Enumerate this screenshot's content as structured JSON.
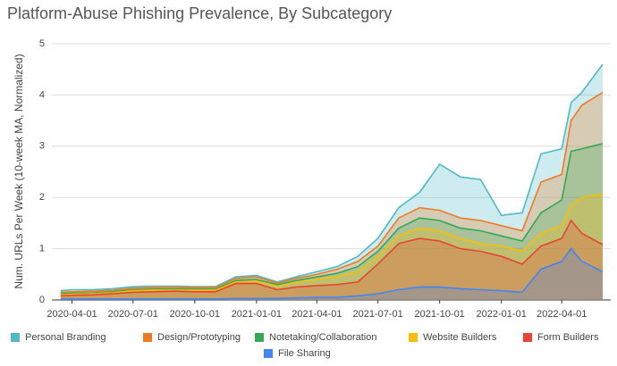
{
  "chart_data": {
    "type": "area",
    "title": "Platform-Abuse Phishing Prevalence, By Subcategory",
    "y_label": "Num. URLs Per Week (10-week MA, Normalized)",
    "x": [
      "2020-03-15",
      "2020-04-01",
      "2020-05-01",
      "2020-06-01",
      "2020-07-01",
      "2020-08-01",
      "2020-09-01",
      "2020-10-01",
      "2020-11-01",
      "2020-12-01",
      "2021-01-01",
      "2021-02-01",
      "2021-03-01",
      "2021-04-01",
      "2021-05-01",
      "2021-06-01",
      "2021-07-01",
      "2021-08-01",
      "2021-09-01",
      "2021-10-01",
      "2021-11-01",
      "2021-12-01",
      "2022-01-01",
      "2022-02-01",
      "2022-03-01",
      "2022-04-01",
      "2022-04-15",
      "2022-05-01",
      "2022-06-01"
    ],
    "xlim": [
      "2020-03-02",
      "2022-06-13"
    ],
    "xticks": [
      "2020-04-01",
      "2020-07-01",
      "2020-10-01",
      "2021-01-01",
      "2021-04-01",
      "2021-07-01",
      "2021-10-01",
      "2022-01-01",
      "2022-04-01"
    ],
    "ylim": [
      0,
      5
    ],
    "yticks": [
      0,
      1,
      2,
      3,
      4,
      5
    ],
    "grid": true,
    "legend": "bottom",
    "series": [
      {
        "name": "Personal Branding",
        "color": "#4fb9c6",
        "values": [
          0.18,
          0.2,
          0.2,
          0.22,
          0.26,
          0.27,
          0.27,
          0.26,
          0.26,
          0.45,
          0.48,
          0.35,
          0.45,
          0.55,
          0.65,
          0.85,
          1.2,
          1.8,
          2.1,
          2.65,
          2.4,
          2.35,
          1.65,
          1.7,
          2.85,
          2.95,
          3.85,
          4.05,
          4.6
        ]
      },
      {
        "name": "Design/Prototyping",
        "color": "#ee7a22",
        "values": [
          0.15,
          0.16,
          0.17,
          0.19,
          0.23,
          0.24,
          0.24,
          0.24,
          0.24,
          0.42,
          0.45,
          0.33,
          0.42,
          0.5,
          0.6,
          0.75,
          1.05,
          1.6,
          1.8,
          1.75,
          1.6,
          1.55,
          1.45,
          1.35,
          2.3,
          2.45,
          3.5,
          3.8,
          4.05
        ]
      },
      {
        "name": "Notetaking/Collaboration",
        "color": "#34a853",
        "values": [
          0.12,
          0.13,
          0.14,
          0.16,
          0.2,
          0.21,
          0.21,
          0.21,
          0.21,
          0.38,
          0.4,
          0.3,
          0.38,
          0.45,
          0.52,
          0.65,
          0.95,
          1.4,
          1.6,
          1.55,
          1.4,
          1.35,
          1.25,
          1.15,
          1.7,
          1.95,
          2.9,
          2.95,
          3.05
        ]
      },
      {
        "name": "Website Builders",
        "color": "#fbbc04",
        "values": [
          0.1,
          0.11,
          0.12,
          0.14,
          0.18,
          0.19,
          0.19,
          0.19,
          0.19,
          0.35,
          0.36,
          0.27,
          0.34,
          0.4,
          0.46,
          0.55,
          0.85,
          1.25,
          1.4,
          1.35,
          1.2,
          1.1,
          1.05,
          0.95,
          1.3,
          1.45,
          1.85,
          2.0,
          2.07
        ]
      },
      {
        "name": "Form Builders",
        "color": "#ea4335",
        "values": [
          0.08,
          0.09,
          0.1,
          0.12,
          0.15,
          0.16,
          0.17,
          0.16,
          0.16,
          0.32,
          0.32,
          0.2,
          0.25,
          0.28,
          0.3,
          0.35,
          0.7,
          1.1,
          1.2,
          1.15,
          1.0,
          0.95,
          0.85,
          0.7,
          1.05,
          1.2,
          1.55,
          1.3,
          1.08
        ]
      },
      {
        "name": "File Sharing",
        "color": "#4285f4",
        "values": [
          0.02,
          0.02,
          0.02,
          0.02,
          0.02,
          0.02,
          0.02,
          0.02,
          0.02,
          0.03,
          0.03,
          0.03,
          0.04,
          0.05,
          0.05,
          0.08,
          0.12,
          0.2,
          0.25,
          0.25,
          0.22,
          0.2,
          0.18,
          0.15,
          0.6,
          0.75,
          1.0,
          0.75,
          0.55
        ]
      }
    ]
  }
}
